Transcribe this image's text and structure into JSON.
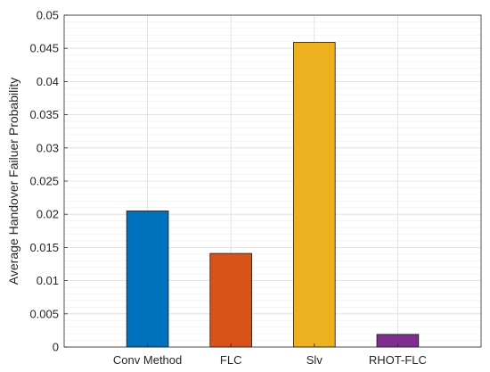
{
  "chart_data": {
    "type": "bar",
    "title": "",
    "xlabel": "",
    "ylabel": "Average Handover Failuer Probability",
    "categories": [
      "Conv Method",
      "FLC",
      "Slv",
      "RHOT-FLC"
    ],
    "values": [
      0.0205,
      0.0141,
      0.0459,
      0.0019
    ],
    "colors": [
      "#0072BD",
      "#D95319",
      "#EDB120",
      "#7E2F8E"
    ],
    "ylim": [
      0,
      0.05
    ],
    "yticks": [
      "0",
      "0.005",
      "0.01",
      "0.015",
      "0.02",
      "0.025",
      "0.03",
      "0.035",
      "0.04",
      "0.045",
      "0.05"
    ],
    "grid": true,
    "minor_grid": true,
    "legend": "none"
  }
}
